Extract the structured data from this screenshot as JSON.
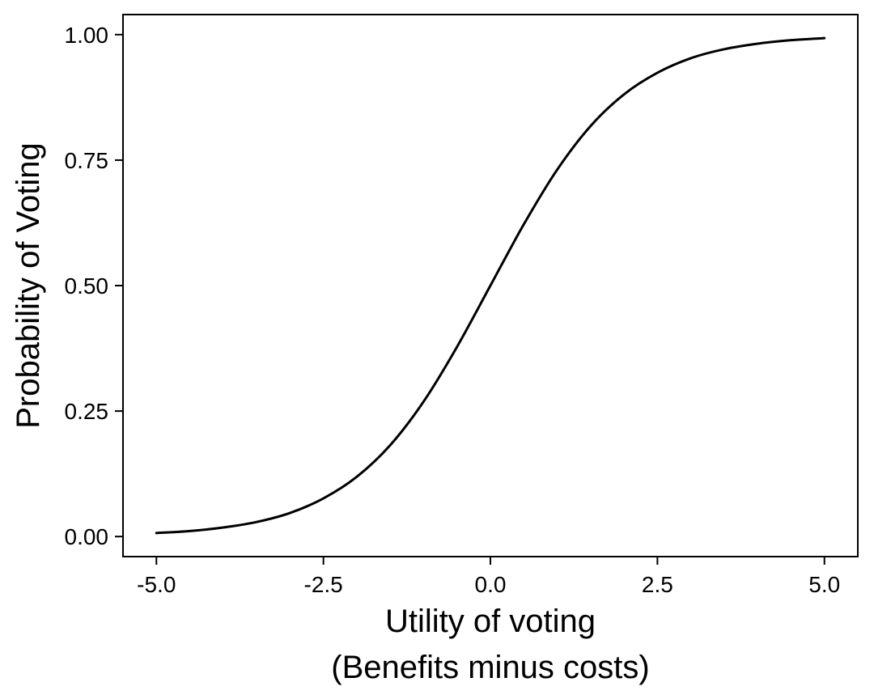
{
  "chart_data": {
    "type": "line",
    "title": "",
    "xlabel": "Utility of voting",
    "xlabel_line2": "(Benefits minus costs)",
    "ylabel": "Probability of Voting",
    "xlim": [
      -5.5,
      5.5
    ],
    "ylim": [
      -0.04,
      1.04
    ],
    "x_ticks": [
      -5.0,
      -2.5,
      0.0,
      2.5,
      5.0
    ],
    "x_tick_labels": [
      "-5.0",
      "-2.5",
      "0.0",
      "2.5",
      "5.0"
    ],
    "y_ticks": [
      0.0,
      0.25,
      0.5,
      0.75,
      1.0
    ],
    "y_tick_labels": [
      "0.00",
      "0.25",
      "0.50",
      "0.75",
      "1.00"
    ],
    "grid": false,
    "legend": "none",
    "line_color": "#000000",
    "series": [
      {
        "x": [
          -5.0,
          -4.5,
          -4.0,
          -3.5,
          -3.0,
          -2.5,
          -2.0,
          -1.5,
          -1.0,
          -0.5,
          0.0,
          0.5,
          1.0,
          1.5,
          2.0,
          2.5,
          3.0,
          3.5,
          4.0,
          4.5,
          5.0
        ],
        "values": [
          0.007,
          0.011,
          0.018,
          0.029,
          0.047,
          0.076,
          0.119,
          0.182,
          0.269,
          0.378,
          0.5,
          0.622,
          0.731,
          0.818,
          0.881,
          0.924,
          0.953,
          0.971,
          0.982,
          0.989,
          0.993
        ]
      }
    ]
  }
}
